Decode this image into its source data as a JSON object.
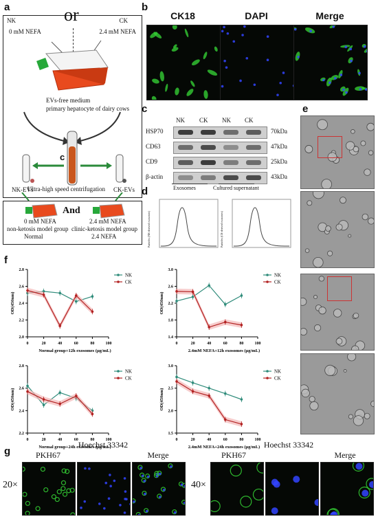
{
  "panel_a": {
    "letter": "a",
    "nk": "NK",
    "ck": "CK",
    "or": "or",
    "nk_conc": "0 mM NEFA",
    "ck_conc": "2.4 mM NEFA",
    "medium1": "EVs-free medium",
    "medium2": "primary hepatocyte of dairy cows",
    "c_label": "c",
    "nk_evs": "NK-EVs",
    "ck_evs": "CK-EVs",
    "centrifuge": "Ultra-high speed centrifugation",
    "and": "And",
    "left_model": [
      "0 mM NEFA",
      "non-ketosis model group",
      "Normal"
    ],
    "right_model": [
      "2.4 mM NEFA",
      "clinic-ketosis model group",
      "2.4 NEFA"
    ]
  },
  "panel_b": {
    "letter": "b",
    "titles": [
      "CK18",
      "DAPI",
      "Merge"
    ]
  },
  "panel_c": {
    "letter": "c",
    "columns": [
      "NK",
      "CK",
      "NK",
      "CK"
    ],
    "rows": [
      {
        "name": "HSP70",
        "size": "70kDa"
      },
      {
        "name": "CD63",
        "size": "47kDa"
      },
      {
        "name": "CD9",
        "size": "25kDa"
      },
      {
        "name": "β-actin",
        "size": "43kDa"
      }
    ],
    "groups": [
      "Exosomes",
      "Cultured supernatant"
    ]
  },
  "panel_d": {
    "letter": "d",
    "ylabel_left": "Particles (NK-derived exosomes)",
    "ylabel_right": "Particles (CK-derived exosomes)"
  },
  "panel_e": {
    "letter": "e"
  },
  "panel_f": {
    "letter": "f"
  },
  "panel_g": {
    "letter": "g",
    "mag1": "20×",
    "mag2": "40×",
    "titles1": [
      "PKH67",
      "Hoechst 33342",
      "Merge"
    ],
    "titles2": [
      "PKH67",
      "Hoechst 33342",
      "Merge"
    ]
  },
  "colors": {
    "nk": "#2e8b7a",
    "ck": "#b22222",
    "ck_band": "#f4b8b8",
    "gfp": "#33cc33",
    "dapi": "#3344ff"
  },
  "chart_data": [
    {
      "type": "line",
      "xlabel": "Normal group+12h exosomes (μg/mL)",
      "ylabel": "OD(450nm)",
      "x": [
        0,
        20,
        40,
        60,
        80
      ],
      "xlim": [
        0,
        100
      ],
      "ylim": [
        2.0,
        2.8
      ],
      "xticks": [
        0,
        20,
        40,
        60,
        80,
        100
      ],
      "yticks": [
        2.0,
        2.2,
        2.4,
        2.6,
        2.8
      ],
      "series": [
        {
          "name": "NK",
          "values": [
            2.52,
            2.54,
            2.52,
            2.42,
            2.48
          ]
        },
        {
          "name": "CK",
          "values": [
            2.55,
            2.5,
            2.13,
            2.49,
            2.3
          ]
        }
      ]
    },
    {
      "type": "line",
      "xlabel": "2.4mM NEFA+12h exosomes (μg/mL)",
      "ylabel": "OD(450nm)",
      "x": [
        0,
        20,
        40,
        60,
        80
      ],
      "xlim": [
        0,
        100
      ],
      "ylim": [
        1.4,
        3.0
      ],
      "xticks": [
        0,
        20,
        40,
        60,
        80,
        100
      ],
      "yticks": [
        1.4,
        1.8,
        2.2,
        2.6,
        3.0
      ],
      "series": [
        {
          "name": "NK",
          "values": [
            2.25,
            2.35,
            2.62,
            2.17,
            2.38
          ]
        },
        {
          "name": "CK",
          "values": [
            2.48,
            2.47,
            1.63,
            1.75,
            1.68
          ]
        }
      ]
    },
    {
      "type": "line",
      "xlabel": "Normal group+24h exosomes (μg/mL)",
      "ylabel": "OD(450nm)",
      "x": [
        0,
        20,
        40,
        60,
        80
      ],
      "xlim": [
        0,
        100
      ],
      "ylim": [
        2.2,
        2.8
      ],
      "xticks": [
        0,
        20,
        40,
        60,
        80,
        100
      ],
      "yticks": [
        2.2,
        2.4,
        2.6,
        2.8
      ],
      "series": [
        {
          "name": "NK",
          "values": [
            2.62,
            2.45,
            2.56,
            2.51,
            2.4
          ]
        },
        {
          "name": "CK",
          "values": [
            2.57,
            2.5,
            2.46,
            2.53,
            2.37
          ]
        }
      ]
    },
    {
      "type": "line",
      "xlabel": "2.4mM NEFA+24h exosomes (μg/mL)",
      "ylabel": "OD(450nm)",
      "x": [
        0,
        20,
        40,
        60,
        80
      ],
      "xlim": [
        0,
        100
      ],
      "ylim": [
        1.5,
        3.0
      ],
      "xticks": [
        0,
        20,
        40,
        60,
        80,
        100
      ],
      "yticks": [
        1.5,
        2.0,
        2.5,
        3.0
      ],
      "series": [
        {
          "name": "NK",
          "values": [
            2.75,
            2.62,
            2.5,
            2.38,
            2.25
          ]
        },
        {
          "name": "CK",
          "values": [
            2.65,
            2.43,
            2.33,
            1.8,
            1.7
          ]
        }
      ]
    }
  ]
}
